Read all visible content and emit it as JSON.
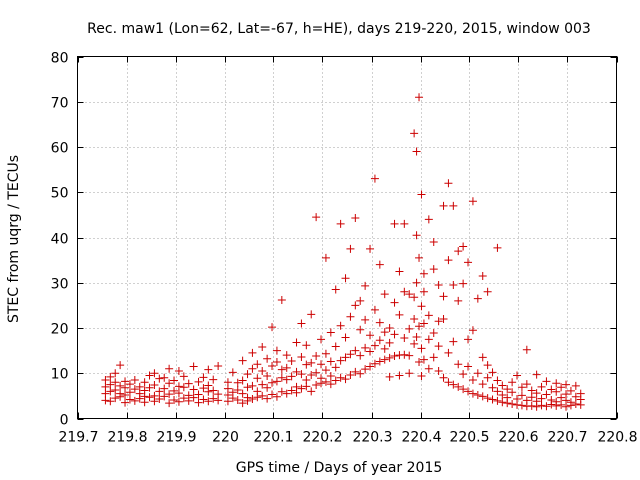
{
  "chart_data": {
    "type": "scatter",
    "title": "Rec. maw1 (Lon=62, Lat=-67, h=HE), days 219-220, 2015, window 003",
    "xlabel": "GPS time / Days of year 2015",
    "ylabel": "STEC from uqrg / TECUs",
    "xlim": [
      219.7,
      220.8
    ],
    "ylim": [
      0,
      80
    ],
    "xticks": [
      219.7,
      219.8,
      219.9,
      220.0,
      220.1,
      220.2,
      220.3,
      220.4,
      220.5,
      220.6,
      220.7,
      220.8
    ],
    "xtick_labels": [
      "219.7",
      "219.8",
      "219.9",
      "220",
      "220.1",
      "220.2",
      "220.3",
      "220.4",
      "220.5",
      "220.6",
      "220.7",
      "220.8"
    ],
    "yticks": [
      0,
      10,
      20,
      30,
      40,
      50,
      60,
      70,
      80
    ],
    "ytick_labels": [
      "0",
      "10",
      "20",
      "30",
      "40",
      "50",
      "60",
      "70",
      "80"
    ],
    "grid": true,
    "marker": "+",
    "color": "#cc0000",
    "points": [
      [
        219.757,
        4.0
      ],
      [
        219.757,
        5.5
      ],
      [
        219.757,
        7.0
      ],
      [
        219.757,
        8.5
      ],
      [
        219.767,
        3.8
      ],
      [
        219.767,
        6.0
      ],
      [
        219.767,
        7.5
      ],
      [
        219.767,
        9.2
      ],
      [
        219.777,
        4.5
      ],
      [
        219.777,
        6.3
      ],
      [
        219.777,
        8.0
      ],
      [
        219.777,
        10.0
      ],
      [
        219.787,
        4.8
      ],
      [
        219.787,
        5.5
      ],
      [
        219.787,
        7.2
      ],
      [
        219.787,
        11.8
      ],
      [
        219.797,
        3.5
      ],
      [
        219.797,
        5.2
      ],
      [
        219.797,
        6.8
      ],
      [
        219.797,
        8.2
      ],
      [
        219.807,
        4.2
      ],
      [
        219.807,
        5.8
      ],
      [
        219.807,
        7.6
      ],
      [
        219.817,
        3.9
      ],
      [
        219.817,
        6.5
      ],
      [
        219.817,
        8.5
      ],
      [
        219.827,
        4.4
      ],
      [
        219.827,
        5.5
      ],
      [
        219.827,
        7.0
      ],
      [
        219.837,
        3.6
      ],
      [
        219.837,
        4.9
      ],
      [
        219.837,
        6.2
      ],
      [
        219.837,
        8.0
      ],
      [
        219.847,
        4.7
      ],
      [
        219.847,
        6.8
      ],
      [
        219.847,
        9.5
      ],
      [
        219.857,
        3.8
      ],
      [
        219.857,
        5.0
      ],
      [
        219.857,
        7.4
      ],
      [
        219.857,
        10.0
      ],
      [
        219.867,
        4.3
      ],
      [
        219.867,
        6.0
      ],
      [
        219.867,
        8.8
      ],
      [
        219.877,
        4.9
      ],
      [
        219.877,
        6.6
      ],
      [
        219.877,
        9.0
      ],
      [
        219.887,
        3.4
      ],
      [
        219.887,
        5.4
      ],
      [
        219.887,
        7.8
      ],
      [
        219.887,
        11.0
      ],
      [
        219.897,
        4.1
      ],
      [
        219.897,
        6.1
      ],
      [
        219.897,
        8.4
      ],
      [
        219.907,
        3.7
      ],
      [
        219.907,
        5.6
      ],
      [
        219.907,
        7.1
      ],
      [
        219.907,
        10.5
      ],
      [
        219.917,
        4.5
      ],
      [
        219.917,
        6.9
      ],
      [
        219.917,
        9.3
      ],
      [
        219.927,
        3.9
      ],
      [
        219.927,
        5.1
      ],
      [
        219.927,
        7.7
      ],
      [
        219.937,
        4.6
      ],
      [
        219.937,
        6.4
      ],
      [
        219.937,
        11.5
      ],
      [
        219.947,
        3.5
      ],
      [
        219.947,
        5.3
      ],
      [
        219.947,
        8.1
      ],
      [
        219.957,
        4.2
      ],
      [
        219.957,
        6.7
      ],
      [
        219.957,
        9.1
      ],
      [
        219.967,
        3.8
      ],
      [
        219.967,
        5.9
      ],
      [
        219.967,
        7.3
      ],
      [
        219.967,
        10.8
      ],
      [
        219.977,
        4.4
      ],
      [
        219.977,
        6.2
      ],
      [
        219.977,
        8.6
      ],
      [
        219.987,
        4.0
      ],
      [
        219.987,
        5.4
      ],
      [
        219.987,
        11.6
      ],
      [
        220.007,
        3.8
      ],
      [
        220.007,
        5.2
      ],
      [
        220.007,
        6.6
      ],
      [
        220.007,
        8.0
      ],
      [
        220.017,
        4.5
      ],
      [
        220.017,
        5.8
      ],
      [
        220.017,
        10.2
      ],
      [
        220.027,
        4.1
      ],
      [
        220.027,
        6.3
      ],
      [
        220.027,
        7.9
      ],
      [
        220.037,
        3.4
      ],
      [
        220.037,
        5.5
      ],
      [
        220.037,
        8.4
      ],
      [
        220.037,
        12.8
      ],
      [
        220.047,
        3.9
      ],
      [
        220.047,
        4.6
      ],
      [
        220.047,
        6.9
      ],
      [
        220.047,
        9.8
      ],
      [
        220.057,
        4.3
      ],
      [
        220.057,
        7.2
      ],
      [
        220.057,
        11.0
      ],
      [
        220.057,
        14.5
      ],
      [
        220.067,
        4.7
      ],
      [
        220.067,
        6.0
      ],
      [
        220.067,
        8.9
      ],
      [
        220.067,
        12.0
      ],
      [
        220.077,
        5.0
      ],
      [
        220.077,
        7.5
      ],
      [
        220.077,
        10.5
      ],
      [
        220.077,
        15.8
      ],
      [
        220.087,
        4.4
      ],
      [
        220.087,
        6.8
      ],
      [
        220.087,
        9.4
      ],
      [
        220.087,
        13.2
      ],
      [
        220.097,
        5.3
      ],
      [
        220.097,
        7.9
      ],
      [
        220.097,
        11.6
      ],
      [
        220.097,
        20.2
      ],
      [
        220.107,
        4.8
      ],
      [
        220.107,
        8.2
      ],
      [
        220.107,
        12.5
      ],
      [
        220.107,
        15.0
      ],
      [
        220.117,
        5.9
      ],
      [
        220.117,
        9.0
      ],
      [
        220.117,
        10.8
      ],
      [
        220.117,
        26.2
      ],
      [
        220.127,
        5.5
      ],
      [
        220.127,
        8.6
      ],
      [
        220.127,
        11.2
      ],
      [
        220.127,
        14.0
      ],
      [
        220.137,
        6.2
      ],
      [
        220.137,
        9.3
      ],
      [
        220.137,
        12.7
      ],
      [
        220.147,
        5.7
      ],
      [
        220.147,
        7.0
      ],
      [
        220.147,
        10.3
      ],
      [
        220.147,
        16.8
      ],
      [
        220.157,
        6.6
      ],
      [
        220.157,
        9.8
      ],
      [
        220.157,
        13.6
      ],
      [
        220.157,
        21.0
      ],
      [
        220.167,
        7.1
      ],
      [
        220.167,
        8.5
      ],
      [
        220.167,
        11.9
      ],
      [
        220.167,
        16.2
      ],
      [
        220.177,
        6.0
      ],
      [
        220.177,
        9.6
      ],
      [
        220.177,
        12.3
      ],
      [
        220.177,
        23.0
      ],
      [
        220.187,
        7.4
      ],
      [
        220.187,
        10.1
      ],
      [
        220.187,
        13.8
      ],
      [
        220.187,
        44.5
      ],
      [
        220.197,
        7.8
      ],
      [
        220.197,
        8.9
      ],
      [
        220.197,
        12.0
      ],
      [
        220.197,
        17.5
      ],
      [
        220.207,
        8.1
      ],
      [
        220.207,
        10.7
      ],
      [
        220.207,
        14.3
      ],
      [
        220.207,
        35.5
      ],
      [
        220.217,
        7.6
      ],
      [
        220.217,
        9.4
      ],
      [
        220.217,
        12.6
      ],
      [
        220.217,
        19.0
      ],
      [
        220.227,
        8.4
      ],
      [
        220.227,
        11.3
      ],
      [
        220.227,
        15.9
      ],
      [
        220.227,
        28.5
      ],
      [
        220.237,
        9.0
      ],
      [
        220.237,
        12.8
      ],
      [
        220.237,
        20.5
      ],
      [
        220.237,
        43.0
      ],
      [
        220.247,
        8.7
      ],
      [
        220.247,
        13.5
      ],
      [
        220.247,
        17.9
      ],
      [
        220.247,
        31.0
      ],
      [
        220.257,
        9.6
      ],
      [
        220.257,
        14.2
      ],
      [
        220.257,
        22.5
      ],
      [
        220.257,
        37.5
      ],
      [
        220.267,
        10.3
      ],
      [
        220.267,
        15.0
      ],
      [
        220.267,
        25.0
      ],
      [
        220.267,
        44.3
      ],
      [
        220.277,
        9.9
      ],
      [
        220.277,
        13.9
      ],
      [
        220.277,
        19.6
      ],
      [
        220.277,
        26.0
      ],
      [
        220.287,
        10.9
      ],
      [
        220.287,
        15.6
      ],
      [
        220.287,
        21.8
      ],
      [
        220.287,
        29.3
      ],
      [
        220.297,
        11.5
      ],
      [
        220.297,
        14.8
      ],
      [
        220.297,
        18.4
      ],
      [
        220.297,
        37.5
      ],
      [
        220.307,
        12.1
      ],
      [
        220.307,
        16.1
      ],
      [
        220.307,
        24.0
      ],
      [
        220.307,
        53.0
      ],
      [
        220.317,
        12.6
      ],
      [
        220.317,
        17.3
      ],
      [
        220.317,
        21.2
      ],
      [
        220.317,
        34.0
      ],
      [
        220.327,
        13.0
      ],
      [
        220.327,
        15.4
      ],
      [
        220.327,
        19.1
      ],
      [
        220.327,
        27.5
      ],
      [
        220.337,
        13.4
      ],
      [
        220.337,
        16.7
      ],
      [
        220.337,
        20.0
      ],
      [
        220.337,
        9.2
      ],
      [
        220.347,
        13.8
      ],
      [
        220.347,
        18.6
      ],
      [
        220.347,
        25.6
      ],
      [
        220.347,
        43.0
      ],
      [
        220.357,
        14.0
      ],
      [
        220.357,
        9.5
      ],
      [
        220.357,
        22.9
      ],
      [
        220.357,
        32.5
      ],
      [
        220.367,
        14.1
      ],
      [
        220.367,
        17.8
      ],
      [
        220.367,
        28.0
      ],
      [
        220.367,
        43.0
      ],
      [
        220.377,
        13.9
      ],
      [
        220.377,
        10.0
      ],
      [
        220.377,
        19.8
      ],
      [
        220.377,
        27.5
      ],
      [
        220.387,
        16.5
      ],
      [
        220.387,
        22.0
      ],
      [
        220.387,
        26.8
      ],
      [
        220.387,
        63.0
      ],
      [
        220.392,
        18.0
      ],
      [
        220.392,
        30.0
      ],
      [
        220.392,
        40.5
      ],
      [
        220.392,
        59.0
      ],
      [
        220.397,
        12.5
      ],
      [
        220.397,
        20.4
      ],
      [
        220.397,
        35.5
      ],
      [
        220.397,
        71.0
      ],
      [
        220.402,
        9.4
      ],
      [
        220.402,
        15.5
      ],
      [
        220.402,
        24.8
      ],
      [
        220.402,
        49.5
      ],
      [
        220.407,
        13.0
      ],
      [
        220.407,
        21.0
      ],
      [
        220.407,
        28.0
      ],
      [
        220.407,
        32.0
      ],
      [
        220.417,
        11.0
      ],
      [
        220.417,
        17.5
      ],
      [
        220.417,
        22.8
      ],
      [
        220.417,
        44.0
      ],
      [
        220.427,
        13.5
      ],
      [
        220.427,
        18.9
      ],
      [
        220.427,
        33.0
      ],
      [
        220.427,
        39.0
      ],
      [
        220.437,
        10.5
      ],
      [
        220.437,
        16.0
      ],
      [
        220.437,
        21.5
      ],
      [
        220.437,
        29.5
      ],
      [
        220.447,
        9.0
      ],
      [
        220.447,
        22.0
      ],
      [
        220.447,
        27.0
      ],
      [
        220.447,
        47.0
      ],
      [
        220.457,
        8.0
      ],
      [
        220.457,
        14.5
      ],
      [
        220.457,
        35.0
      ],
      [
        220.457,
        52.0
      ],
      [
        220.467,
        7.5
      ],
      [
        220.467,
        17.0
      ],
      [
        220.467,
        29.5
      ],
      [
        220.467,
        47.0
      ],
      [
        220.477,
        7.0
      ],
      [
        220.477,
        12.0
      ],
      [
        220.477,
        26.0
      ],
      [
        220.477,
        37.0
      ],
      [
        220.487,
        6.5
      ],
      [
        220.487,
        9.8
      ],
      [
        220.487,
        29.8
      ],
      [
        220.487,
        38.0
      ],
      [
        220.497,
        6.0
      ],
      [
        220.497,
        11.5
      ],
      [
        220.497,
        17.5
      ],
      [
        220.497,
        34.5
      ],
      [
        220.507,
        5.5
      ],
      [
        220.507,
        8.5
      ],
      [
        220.507,
        19.5
      ],
      [
        220.507,
        48.0
      ],
      [
        220.517,
        5.2
      ],
      [
        220.517,
        10.0
      ],
      [
        220.517,
        26.5
      ],
      [
        220.527,
        4.9
      ],
      [
        220.527,
        7.6
      ],
      [
        220.527,
        13.5
      ],
      [
        220.527,
        31.5
      ],
      [
        220.537,
        4.5
      ],
      [
        220.537,
        9.0
      ],
      [
        220.537,
        11.8
      ],
      [
        220.537,
        28.0
      ],
      [
        220.547,
        4.2
      ],
      [
        220.547,
        6.8
      ],
      [
        220.547,
        10.2
      ],
      [
        220.557,
        3.9
      ],
      [
        220.557,
        6.0
      ],
      [
        220.557,
        8.4
      ],
      [
        220.557,
        37.7
      ],
      [
        220.567,
        3.6
      ],
      [
        220.567,
        5.2
      ],
      [
        220.567,
        7.3
      ],
      [
        220.577,
        3.4
      ],
      [
        220.577,
        4.6
      ],
      [
        220.577,
        6.5
      ],
      [
        220.587,
        3.2
      ],
      [
        220.587,
        5.8
      ],
      [
        220.587,
        8.0
      ],
      [
        220.597,
        3.0
      ],
      [
        220.597,
        4.3
      ],
      [
        220.597,
        9.5
      ],
      [
        220.607,
        2.9
      ],
      [
        220.607,
        5.1
      ],
      [
        220.607,
        6.9
      ],
      [
        220.617,
        2.7
      ],
      [
        220.617,
        4.0
      ],
      [
        220.617,
        7.6
      ],
      [
        220.617,
        15.2
      ],
      [
        220.627,
        2.8
      ],
      [
        220.627,
        4.7
      ],
      [
        220.627,
        6.2
      ],
      [
        220.637,
        2.6
      ],
      [
        220.637,
        3.8
      ],
      [
        220.637,
        5.6
      ],
      [
        220.637,
        9.7
      ],
      [
        220.647,
        2.9
      ],
      [
        220.647,
        4.4
      ],
      [
        220.647,
        7.0
      ],
      [
        220.657,
        2.7
      ],
      [
        220.657,
        5.3
      ],
      [
        220.657,
        8.2
      ],
      [
        220.667,
        3.1
      ],
      [
        220.667,
        4.1
      ],
      [
        220.667,
        6.4
      ],
      [
        220.677,
        2.8
      ],
      [
        220.677,
        3.7
      ],
      [
        220.677,
        5.9
      ],
      [
        220.677,
        7.8
      ],
      [
        220.687,
        3.0
      ],
      [
        220.687,
        4.6
      ],
      [
        220.687,
        6.9
      ],
      [
        220.697,
        2.6
      ],
      [
        220.697,
        4.0
      ],
      [
        220.697,
        5.4
      ],
      [
        220.697,
        7.5
      ],
      [
        220.707,
        2.9
      ],
      [
        220.707,
        3.6
      ],
      [
        220.707,
        6.1
      ],
      [
        220.717,
        3.2
      ],
      [
        220.717,
        4.8
      ],
      [
        220.717,
        7.2
      ],
      [
        220.727,
        3.0
      ],
      [
        220.727,
        4.2
      ],
      [
        220.727,
        5.5
      ]
    ]
  }
}
